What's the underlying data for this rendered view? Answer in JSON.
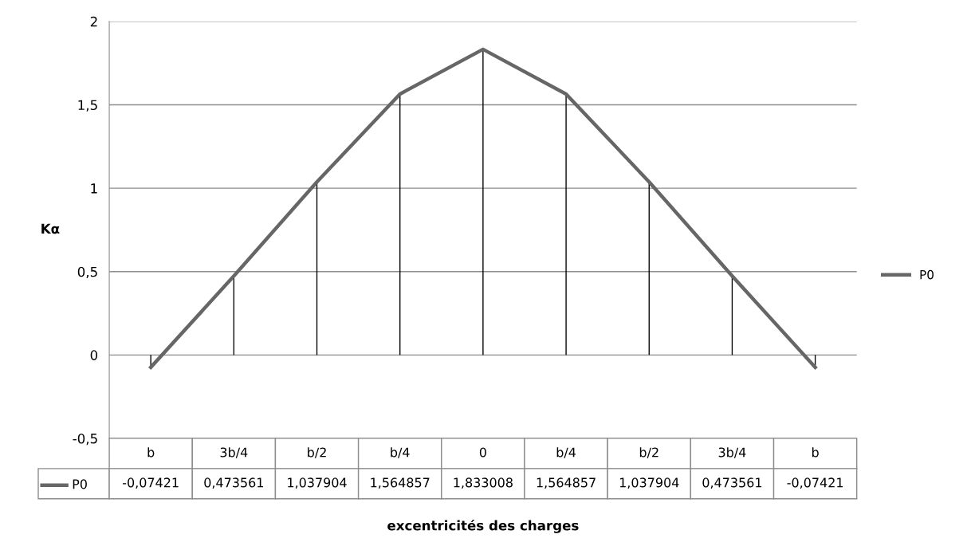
{
  "chart_data": {
    "type": "line",
    "ylabel": "Kα",
    "xlabel": "excentricités des charges",
    "categories": [
      "b",
      "3b/4",
      "b/2",
      "b/4",
      "0",
      "b/4",
      "b/2",
      "3b/4",
      "b"
    ],
    "series": [
      {
        "name": "P0",
        "color": "#666666",
        "values": [
          -0.07421,
          0.473561,
          1.037904,
          1.564857,
          1.833008,
          1.564857,
          1.037904,
          0.473561,
          -0.07421
        ],
        "value_labels": [
          "-0,07421",
          "0,473561",
          "1,037904",
          "1,564857",
          "1,833008",
          "1,564857",
          "1,037904",
          "0,473561",
          "-0,07421"
        ]
      },
      {
        "type": "bar",
        "color": "#000000",
        "values": [
          -0.07421,
          0.473561,
          1.037904,
          1.564857,
          1.833008,
          1.564857,
          1.037904,
          0.473561,
          -0.07421
        ]
      }
    ],
    "ylim": [
      -0.5,
      2
    ],
    "yticks": [
      {
        "value": -0.5,
        "label": "-0,5"
      },
      0,
      {
        "value": 0.5,
        "label": "0,5"
      },
      1,
      {
        "value": 1.5,
        "label": "1,5"
      },
      2
    ],
    "grid": "y",
    "legend": "right",
    "marker": "none",
    "line_style": "solid"
  }
}
